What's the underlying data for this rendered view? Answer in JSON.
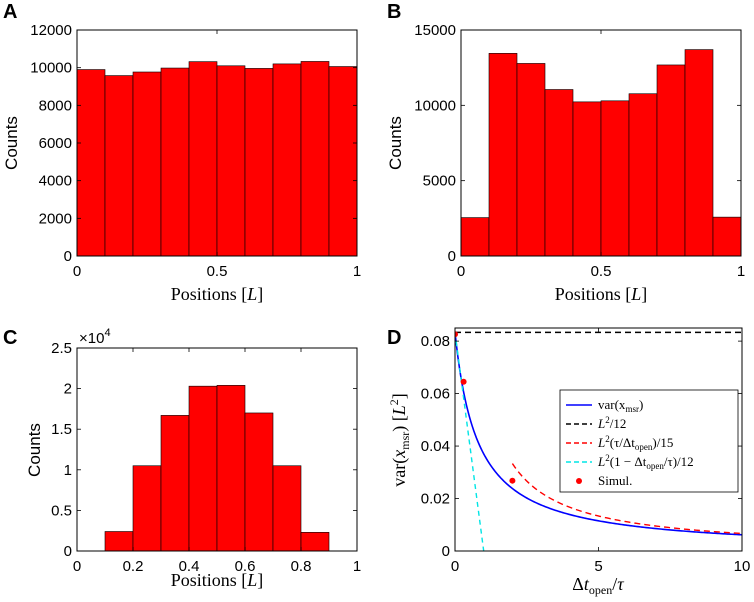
{
  "chart_data": [
    {
      "panel": "A",
      "type": "bar",
      "title": "",
      "xlabel": "Positions [L]",
      "ylabel": "Counts",
      "xlim": [
        0,
        1
      ],
      "ylim": [
        0,
        12000
      ],
      "xticks": [
        0,
        0.5,
        1
      ],
      "xtick_labels": [
        "0",
        "0.5",
        "1"
      ],
      "yticks": [
        0,
        2000,
        4000,
        6000,
        8000,
        10000,
        12000
      ],
      "ytick_labels": [
        "0",
        "2000",
        "4000",
        "6000",
        "8000",
        "10000",
        "12000"
      ],
      "bin_edges": [
        0,
        0.1,
        0.2,
        0.3,
        0.4,
        0.5,
        0.6,
        0.7,
        0.8,
        0.9,
        1.0
      ],
      "values": [
        9900,
        9580,
        9770,
        9980,
        10320,
        10100,
        9960,
        10200,
        10330,
        10060
      ],
      "bar_color": "#ff0000"
    },
    {
      "panel": "B",
      "type": "bar",
      "title": "",
      "xlabel": "Positions [L]",
      "ylabel": "Counts",
      "xlim": [
        0,
        1
      ],
      "ylim": [
        0,
        15000
      ],
      "xticks": [
        0,
        0.5,
        1
      ],
      "xtick_labels": [
        "0",
        "0.5",
        "1"
      ],
      "yticks": [
        0,
        5000,
        10000,
        15000
      ],
      "ytick_labels": [
        "0",
        "5000",
        "10000",
        "15000"
      ],
      "bin_edges": [
        0,
        0.1,
        0.2,
        0.3,
        0.4,
        0.5,
        0.6,
        0.7,
        0.8,
        0.9,
        1.0
      ],
      "values": [
        2550,
        13450,
        12780,
        11050,
        10230,
        10300,
        10770,
        12680,
        13700,
        2580
      ],
      "bar_color": "#ff0000"
    },
    {
      "panel": "C",
      "type": "bar",
      "title": "",
      "xlabel": "Positions [L]",
      "ylabel": "Counts",
      "multiplier": "×10",
      "multiplier_exp": "4",
      "xlim": [
        0,
        1
      ],
      "ylim": [
        0,
        2.5
      ],
      "xticks": [
        0,
        0.2,
        0.4,
        0.6,
        0.8,
        1
      ],
      "xtick_labels": [
        "0",
        "0.2",
        "0.4",
        "0.6",
        "0.8",
        "1"
      ],
      "yticks": [
        0,
        0.5,
        1,
        1.5,
        2,
        2.5
      ],
      "ytick_labels": [
        "0",
        "0.5",
        "1",
        "1.5",
        "2",
        "2.5"
      ],
      "bin_edges": [
        0.1,
        0.2,
        0.3,
        0.4,
        0.5,
        0.6,
        0.7,
        0.8,
        0.9
      ],
      "values": [
        0.24,
        1.05,
        1.67,
        2.03,
        2.04,
        1.7,
        1.05,
        0.23
      ],
      "bar_color": "#ff0000"
    },
    {
      "panel": "D",
      "type": "line",
      "title": "",
      "xlabel": "Δt_open/τ",
      "ylabel": "var(x_msr) [L²]",
      "xlim": [
        0,
        10
      ],
      "ylim": [
        0,
        0.085
      ],
      "xticks": [
        0,
        5,
        10
      ],
      "xtick_labels": [
        "0",
        "5",
        "10"
      ],
      "yticks": [
        0,
        0.02,
        0.04,
        0.06,
        0.08
      ],
      "ytick_labels": [
        "0",
        "0.02",
        "0.04",
        "0.06",
        "0.08"
      ],
      "series": [
        {
          "name": "var(x_msr)",
          "legend_text": "var(x",
          "legend_sub": "msr",
          "legend_tail": ")",
          "style": "solid",
          "color": "#0000ff",
          "formula": "exact"
        },
        {
          "name": "L^2/12",
          "legend_text": "L",
          "legend_sup": "2",
          "legend_tail": "/12",
          "style": "dashed",
          "color": "#000000",
          "formula": "constant",
          "constant": 0.08333
        },
        {
          "name": "L^2(τ/Δt_open)/15",
          "legend_text": "L",
          "legend_sup": "2",
          "legend_mid": "(τ/Δt",
          "legend_sub": "open",
          "legend_tail": ")/15",
          "style": "dashed",
          "color": "#ff0000",
          "formula": "large_t",
          "x_range": [
            2,
            10
          ]
        },
        {
          "name": "L^2(1-Δt_open/τ)/12",
          "legend_text": "L",
          "legend_sup": "2",
          "legend_mid": "(1 − Δt",
          "legend_sub": "open",
          "legend_tail": "/τ)/12",
          "style": "dashed",
          "color": "#00e5e5",
          "formula": "small_t",
          "x_range": [
            0,
            1
          ]
        },
        {
          "name": "Simul.",
          "legend_text": "Simul.",
          "style": "markers",
          "color": "#ff0000",
          "x": [
            0.0,
            0.3,
            2.0
          ],
          "y": [
            0.0826,
            0.0645,
            0.0268
          ]
        }
      ]
    }
  ],
  "panels": {
    "A": {
      "letter": "A"
    },
    "B": {
      "letter": "B"
    },
    "C": {
      "letter": "C"
    },
    "D": {
      "letter": "D"
    }
  }
}
